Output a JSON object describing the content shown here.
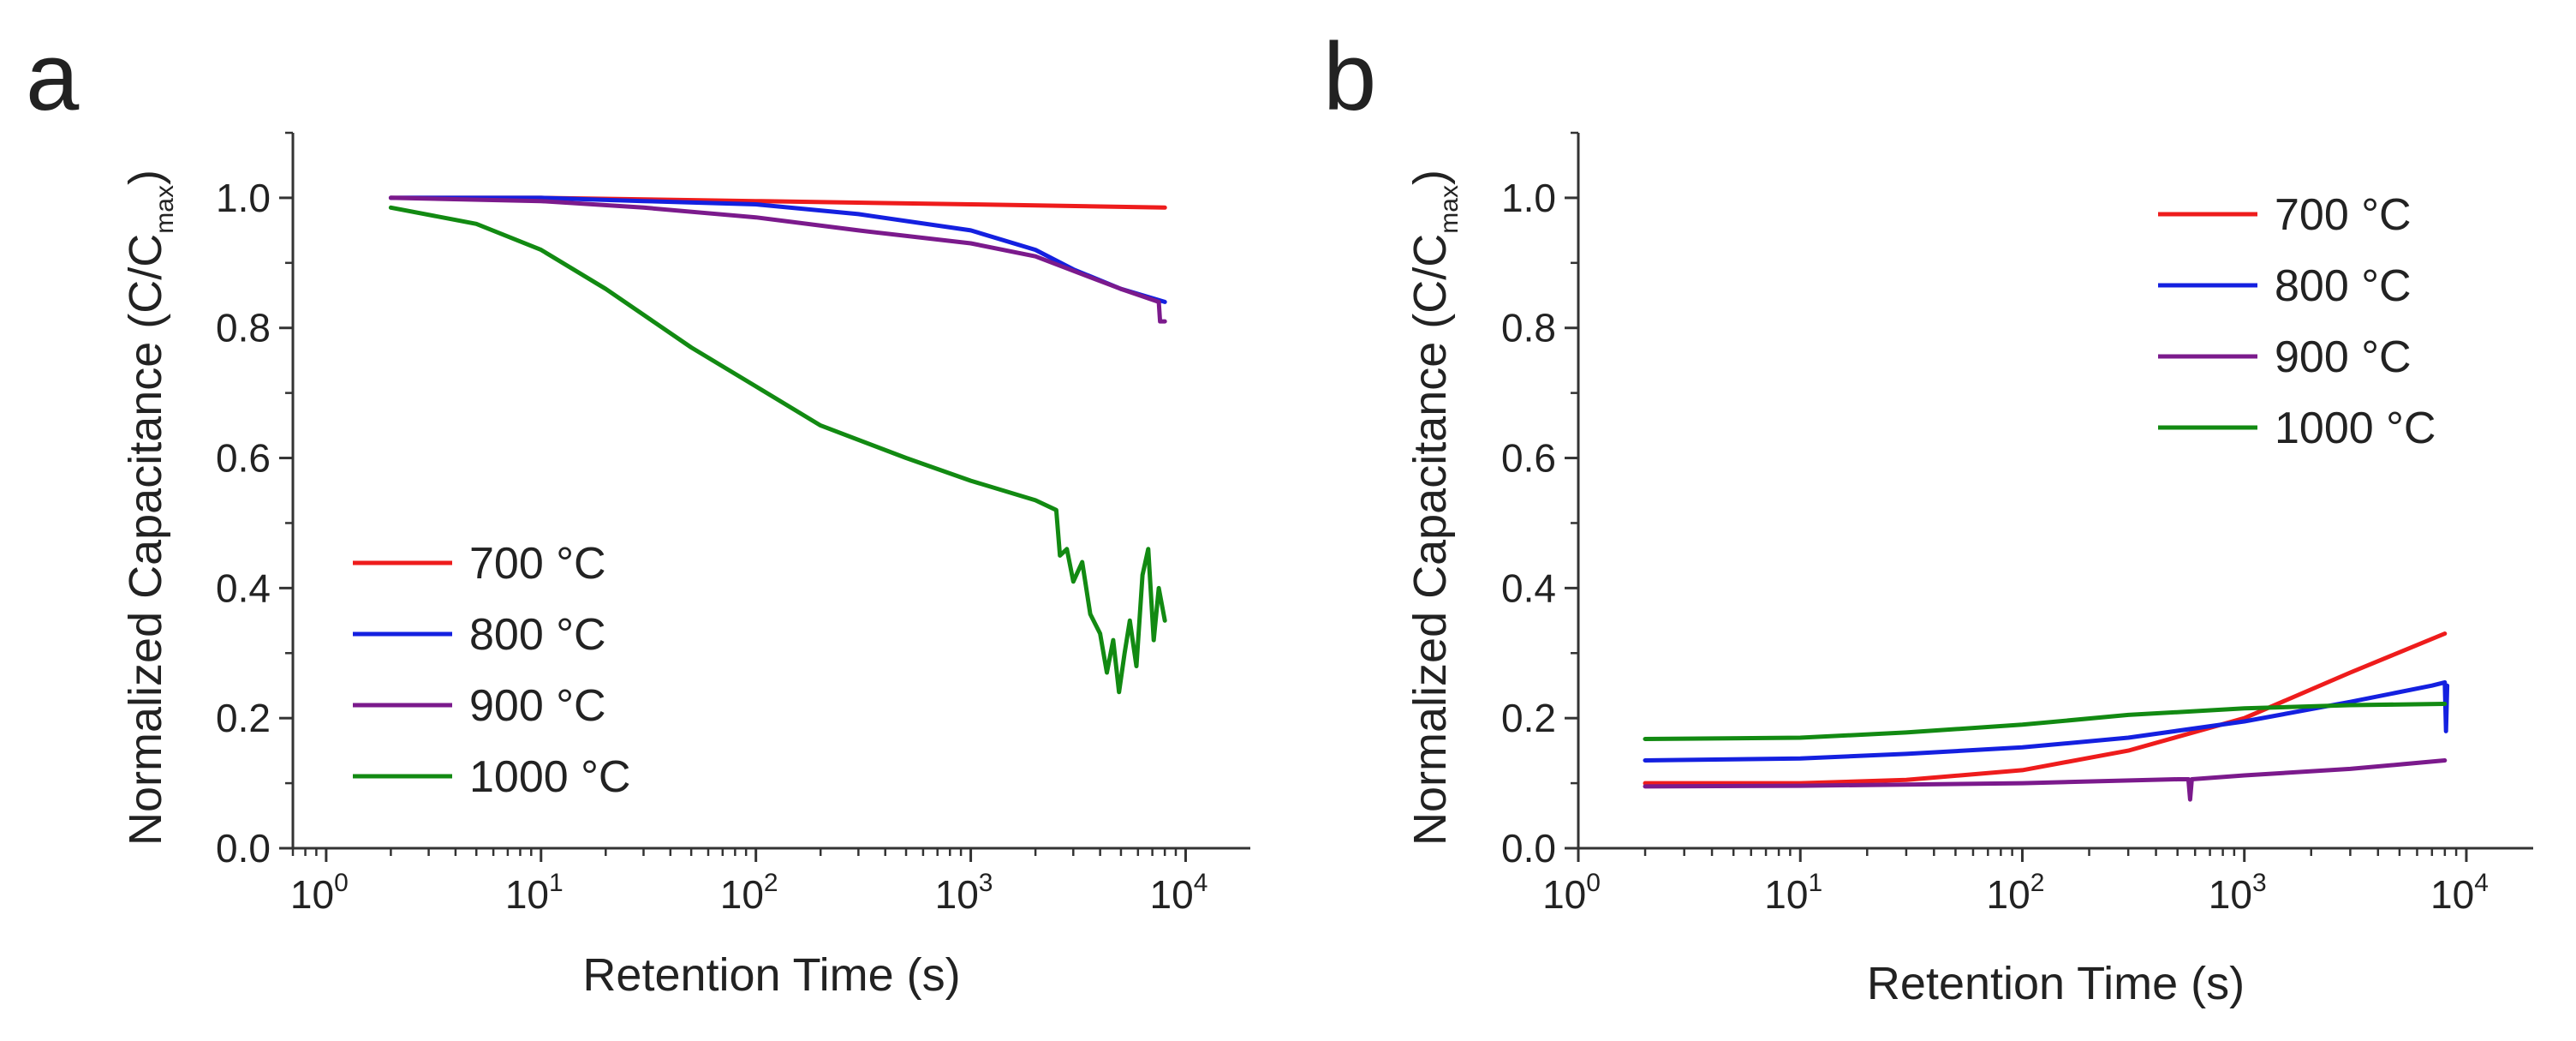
{
  "figure": {
    "panels": [
      "a",
      "b"
    ]
  },
  "chart_data": [
    {
      "panel": "a",
      "type": "line",
      "xscale": "log",
      "xlabel": "Retention Time (s)",
      "ylabel_main": "Normalized Capacitance (C/C",
      "ylabel_sub": "max",
      "ylabel_end": ")",
      "xlim": [
        0.7,
        20000
      ],
      "ylim": [
        0.0,
        1.1
      ],
      "xticks": [
        {
          "value": 1,
          "base": "10",
          "exp": "0"
        },
        {
          "value": 10,
          "base": "10",
          "exp": "1"
        },
        {
          "value": 100,
          "base": "10",
          "exp": "2"
        },
        {
          "value": 1000,
          "base": "10",
          "exp": "3"
        },
        {
          "value": 10000,
          "base": "10",
          "exp": "4"
        }
      ],
      "yticks": [
        "0.0",
        "0.2",
        "0.4",
        "0.6",
        "0.8",
        "1.0"
      ],
      "legend_position": "bottom-left",
      "series": [
        {
          "name": "700 °C",
          "color": "#ee1c1c",
          "x": [
            2,
            10,
            100,
            1000,
            8000
          ],
          "y": [
            1.0,
            1.0,
            0.995,
            0.99,
            0.985
          ]
        },
        {
          "name": "800 °C",
          "color": "#1420e0",
          "x": [
            2,
            10,
            30,
            100,
            300,
            1000,
            2000,
            3000,
            5000,
            8000
          ],
          "y": [
            1.0,
            1.0,
            0.995,
            0.99,
            0.975,
            0.95,
            0.92,
            0.89,
            0.86,
            0.84
          ]
        },
        {
          "name": "900 °C",
          "color": "#7b1a8c",
          "x": [
            2,
            10,
            30,
            100,
            300,
            1000,
            2000,
            5000,
            7500,
            7600,
            8000
          ],
          "y": [
            1.0,
            0.995,
            0.985,
            0.97,
            0.95,
            0.93,
            0.91,
            0.86,
            0.84,
            0.81,
            0.81
          ]
        },
        {
          "name": "1000 °C",
          "color": "#128a12",
          "x": [
            2,
            5,
            10,
            20,
            50,
            100,
            200,
            500,
            1000,
            2000,
            2500,
            2600,
            2800,
            3000,
            3300,
            3600,
            4000,
            4300,
            4600,
            4900,
            5200,
            5500,
            5900,
            6300,
            6700,
            7100,
            7500,
            8000
          ],
          "y": [
            0.985,
            0.96,
            0.92,
            0.86,
            0.77,
            0.71,
            0.65,
            0.6,
            0.565,
            0.535,
            0.52,
            0.45,
            0.46,
            0.41,
            0.44,
            0.36,
            0.33,
            0.27,
            0.32,
            0.24,
            0.3,
            0.35,
            0.28,
            0.42,
            0.46,
            0.32,
            0.4,
            0.35
          ]
        }
      ]
    },
    {
      "panel": "b",
      "type": "line",
      "xscale": "log",
      "xlabel": "Retention Time (s)",
      "ylabel_main": "Normalized Capacitance (C/C",
      "ylabel_sub": "max",
      "ylabel_end": ")",
      "xlim": [
        1,
        20000
      ],
      "ylim": [
        0.0,
        1.1
      ],
      "xticks": [
        {
          "value": 1,
          "base": "10",
          "exp": "0"
        },
        {
          "value": 10,
          "base": "10",
          "exp": "1"
        },
        {
          "value": 100,
          "base": "10",
          "exp": "2"
        },
        {
          "value": 1000,
          "base": "10",
          "exp": "3"
        },
        {
          "value": 10000,
          "base": "10",
          "exp": "4"
        }
      ],
      "yticks": [
        "0.0",
        "0.2",
        "0.4",
        "0.6",
        "0.8",
        "1.0"
      ],
      "legend_position": "top-right",
      "series": [
        {
          "name": "700 °C",
          "color": "#ee1c1c",
          "x": [
            2,
            10,
            30,
            100,
            300,
            1000,
            3000,
            8000
          ],
          "y": [
            0.1,
            0.1,
            0.105,
            0.12,
            0.15,
            0.2,
            0.27,
            0.33
          ]
        },
        {
          "name": "800 °C",
          "color": "#1420e0",
          "x": [
            2,
            10,
            30,
            100,
            300,
            1000,
            3000,
            7000,
            8000,
            8100,
            8200
          ],
          "y": [
            0.135,
            0.138,
            0.145,
            0.155,
            0.17,
            0.195,
            0.225,
            0.25,
            0.255,
            0.18,
            0.25
          ]
        },
        {
          "name": "900 °C",
          "color": "#7b1a8c",
          "x": [
            2,
            10,
            100,
            500,
            560,
            570,
            580,
            1000,
            3000,
            8000
          ],
          "y": [
            0.095,
            0.096,
            0.1,
            0.106,
            0.106,
            0.075,
            0.106,
            0.112,
            0.122,
            0.135
          ]
        },
        {
          "name": "1000 °C",
          "color": "#128a12",
          "x": [
            2,
            10,
            30,
            100,
            300,
            1000,
            3000,
            8000
          ],
          "y": [
            0.168,
            0.17,
            0.178,
            0.19,
            0.205,
            0.215,
            0.22,
            0.222
          ]
        }
      ]
    }
  ]
}
